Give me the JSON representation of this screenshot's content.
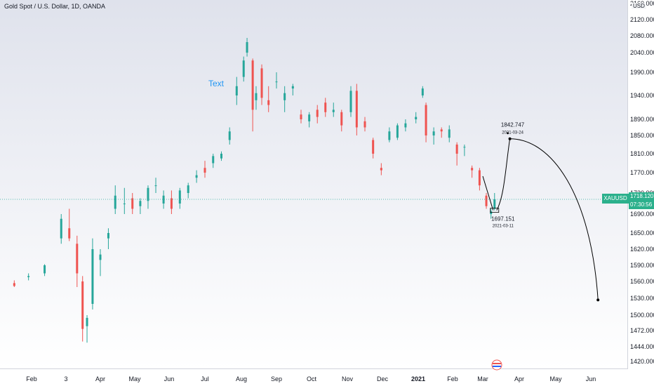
{
  "header": {
    "title": "Gold Spot / U.S. Dollar, 1D, OANDA",
    "currency": "USD"
  },
  "annotation_text": "Text",
  "price_label": {
    "symbol": "XAUUSD",
    "price": "1718.120",
    "countdown": "07:30:56"
  },
  "colors": {
    "up": "#26a69a",
    "down": "#ef5350",
    "text_annotation": "#2196f3",
    "price_line": "#26a69a",
    "drawing": "#000000"
  },
  "chart_data": {
    "type": "candlestick",
    "title": "Gold Spot / U.S. Dollar, 1D, OANDA",
    "y_axis": {
      "unit": "USD",
      "ticks": [
        "1420.000",
        "1444.000",
        "1472.000",
        "1500.000",
        "1530.000",
        "1560.000",
        "1590.000",
        "1620.000",
        "1650.000",
        "1690.000",
        "1730.000",
        "1770.000",
        "1810.000",
        "1850.000",
        "1890.000",
        "1940.000",
        "1990.000",
        "2040.000",
        "2080.000",
        "2120.000",
        "2160.000"
      ]
    },
    "x_axis": {
      "ticks": [
        {
          "label": "Feb",
          "date": "2020-02-01",
          "bold": false
        },
        {
          "label": "3",
          "date": "2020-03-01",
          "bold": false
        },
        {
          "label": "Apr",
          "date": "2020-04-01",
          "bold": false
        },
        {
          "label": "May",
          "date": "2020-05-01",
          "bold": false
        },
        {
          "label": "Jun",
          "date": "2020-06-01",
          "bold": false
        },
        {
          "label": "Jul",
          "date": "2020-07-01",
          "bold": false
        },
        {
          "label": "Aug",
          "date": "2020-08-01",
          "bold": false
        },
        {
          "label": "Sep",
          "date": "2020-09-01",
          "bold": false
        },
        {
          "label": "Oct",
          "date": "2020-10-01",
          "bold": false
        },
        {
          "label": "Nov",
          "date": "2020-11-01",
          "bold": false
        },
        {
          "label": "Dec",
          "date": "2020-12-01",
          "bold": false
        },
        {
          "label": "2021",
          "date": "2021-01-01",
          "bold": true
        },
        {
          "label": "Feb",
          "date": "2021-02-01",
          "bold": false
        },
        {
          "label": "Mar",
          "date": "2021-03-01",
          "bold": false
        },
        {
          "label": "Apr",
          "date": "2021-04-01",
          "bold": false
        },
        {
          "label": "May",
          "date": "2021-05-01",
          "bold": false
        },
        {
          "label": "Jun",
          "date": "2021-06-01",
          "bold": false
        }
      ]
    },
    "ohlc": [
      [
        "2020-01-15",
        1557,
        1562,
        1550,
        1552
      ],
      [
        "2020-01-29",
        1568,
        1575,
        1562,
        1570
      ],
      [
        "2020-02-12",
        1575,
        1592,
        1570,
        1590
      ],
      [
        "2020-02-26",
        1640,
        1690,
        1630,
        1680
      ],
      [
        "2020-03-04",
        1660,
        1700,
        1635,
        1640
      ],
      [
        "2020-03-11",
        1630,
        1645,
        1550,
        1575
      ],
      [
        "2020-03-16",
        1560,
        1570,
        1453,
        1475
      ],
      [
        "2020-03-20",
        1480,
        1500,
        1451,
        1495
      ],
      [
        "2020-03-25",
        1520,
        1640,
        1510,
        1620
      ],
      [
        "2020-04-01",
        1600,
        1620,
        1570,
        1610
      ],
      [
        "2020-04-08",
        1640,
        1660,
        1620,
        1650
      ],
      [
        "2020-04-14",
        1700,
        1745,
        1690,
        1725
      ],
      [
        "2020-04-22",
        1710,
        1740,
        1690,
        1710
      ],
      [
        "2020-04-29",
        1720,
        1730,
        1690,
        1700
      ],
      [
        "2020-05-06",
        1705,
        1720,
        1690,
        1715
      ],
      [
        "2020-05-13",
        1715,
        1745,
        1700,
        1740
      ],
      [
        "2020-05-20",
        1745,
        1760,
        1730,
        1745
      ],
      [
        "2020-05-27",
        1710,
        1735,
        1700,
        1725
      ],
      [
        "2020-06-03",
        1720,
        1735,
        1690,
        1700
      ],
      [
        "2020-06-10",
        1710,
        1740,
        1700,
        1735
      ],
      [
        "2020-06-17",
        1730,
        1750,
        1720,
        1745
      ],
      [
        "2020-06-24",
        1760,
        1775,
        1750,
        1765
      ],
      [
        "2020-07-01",
        1780,
        1795,
        1760,
        1770
      ],
      [
        "2020-07-08",
        1790,
        1810,
        1780,
        1805
      ],
      [
        "2020-07-15",
        1800,
        1815,
        1795,
        1810
      ],
      [
        "2020-07-22",
        1840,
        1870,
        1830,
        1860
      ],
      [
        "2020-07-28",
        1940,
        1980,
        1920,
        1960
      ],
      [
        "2020-08-03",
        1980,
        2030,
        1970,
        2020
      ],
      [
        "2020-08-06",
        2040,
        2075,
        2030,
        2065
      ],
      [
        "2020-08-11",
        2020,
        2025,
        1860,
        1910
      ],
      [
        "2020-08-14",
        1930,
        1960,
        1910,
        1945
      ],
      [
        "2020-08-19",
        2000,
        2010,
        1920,
        1935
      ],
      [
        "2020-08-25",
        1930,
        1960,
        1905,
        1920
      ],
      [
        "2020-09-01",
        1970,
        1990,
        1955,
        1970
      ],
      [
        "2020-09-08",
        1930,
        1960,
        1905,
        1945
      ],
      [
        "2020-09-15",
        1955,
        1965,
        1940,
        1960
      ],
      [
        "2020-09-22",
        1900,
        1910,
        1880,
        1890
      ],
      [
        "2020-09-29",
        1885,
        1905,
        1870,
        1900
      ],
      [
        "2020-10-06",
        1910,
        1920,
        1880,
        1895
      ],
      [
        "2020-10-13",
        1925,
        1935,
        1895,
        1905
      ],
      [
        "2020-10-20",
        1905,
        1925,
        1895,
        1910
      ],
      [
        "2020-10-27",
        1905,
        1910,
        1860,
        1875
      ],
      [
        "2020-11-04",
        1905,
        1960,
        1895,
        1950
      ],
      [
        "2020-11-09",
        1950,
        1965,
        1850,
        1870
      ],
      [
        "2020-11-16",
        1885,
        1895,
        1860,
        1870
      ],
      [
        "2020-11-23",
        1840,
        1845,
        1800,
        1810
      ],
      [
        "2020-11-30",
        1780,
        1790,
        1765,
        1775
      ],
      [
        "2020-12-07",
        1840,
        1870,
        1835,
        1860
      ],
      [
        "2020-12-14",
        1845,
        1880,
        1840,
        1875
      ],
      [
        "2020-12-21",
        1870,
        1890,
        1860,
        1880
      ],
      [
        "2020-12-30",
        1890,
        1905,
        1880,
        1895
      ],
      [
        "2021-01-05",
        1940,
        1960,
        1935,
        1955
      ],
      [
        "2021-01-08",
        1920,
        1925,
        1835,
        1850
      ],
      [
        "2021-01-15",
        1850,
        1870,
        1830,
        1860
      ],
      [
        "2021-01-22",
        1865,
        1870,
        1845,
        1860
      ],
      [
        "2021-01-29",
        1845,
        1875,
        1835,
        1865
      ],
      [
        "2021-02-05",
        1830,
        1835,
        1785,
        1810
      ],
      [
        "2021-02-12",
        1825,
        1830,
        1805,
        1825
      ],
      [
        "2021-02-19",
        1780,
        1785,
        1760,
        1775
      ],
      [
        "2021-02-26",
        1775,
        1780,
        1735,
        1745
      ],
      [
        "2021-03-04",
        1725,
        1730,
        1700,
        1705
      ],
      [
        "2021-03-08",
        1690,
        1700,
        1680,
        1695
      ],
      [
        "2021-03-11",
        1700,
        1730,
        1697,
        1718
      ]
    ]
  },
  "drawings": {
    "peak_label": {
      "price": "1842.747",
      "date": "2021-03-24"
    },
    "low_label": {
      "price": "1697.151",
      "date": "2021-03-11"
    }
  }
}
